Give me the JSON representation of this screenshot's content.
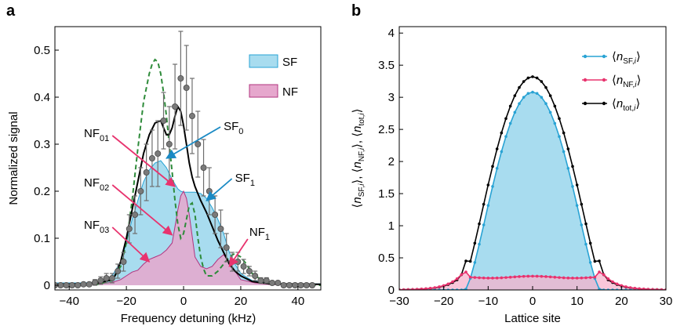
{
  "chart_data": [
    {
      "panel_label": "a",
      "type": "area",
      "xlabel": "Frequency detuning (kHz)",
      "ylabel": "Normalized signal",
      "xlim": [
        -45,
        48
      ],
      "ylim": [
        -0.01,
        0.55
      ],
      "xticks": [
        -40,
        -20,
        0,
        20,
        40
      ],
      "yticks": [
        0,
        0.1,
        0.2,
        0.3,
        0.4,
        0.5
      ],
      "xtick_labels": [
        "−40",
        "−20",
        "0",
        "20",
        "40"
      ],
      "ytick_labels": [
        "0",
        "0.1",
        "0.2",
        "0.3",
        "0.4",
        "0.5"
      ],
      "legend": {
        "placement": "top-right",
        "entries": [
          "SF",
          "NF"
        ]
      },
      "colors": {
        "sf_fill": "#a8dcef",
        "sf_line": "#29a3d4",
        "nf_fill": "#e6a7cd",
        "nf_line": "#b1347f",
        "fit": "#000000",
        "dashed": "#2e8b3a",
        "points": "#7a7a7a",
        "arrow_pink": "#e8336e",
        "arrow_blue": "#1a8ac4"
      },
      "series": [
        {
          "name": "SF",
          "kind": "filled-area",
          "x": [
            -45,
            -35,
            -30,
            -27,
            -25,
            -22,
            -20,
            -18,
            -16,
            -14,
            -12,
            -10,
            -8,
            -6,
            -4,
            -2,
            -1,
            0,
            2,
            4,
            6,
            8,
            10,
            12,
            14,
            16,
            18,
            20,
            24,
            30,
            40,
            48
          ],
          "y": [
            0.005,
            0.005,
            0.006,
            0.01,
            0.02,
            0.05,
            0.09,
            0.14,
            0.18,
            0.22,
            0.245,
            0.26,
            0.265,
            0.25,
            0.225,
            0.205,
            0.2,
            0.198,
            0.198,
            0.198,
            0.195,
            0.185,
            0.165,
            0.14,
            0.11,
            0.07,
            0.045,
            0.025,
            0.01,
            0.004,
            0.003,
            0.003
          ]
        },
        {
          "name": "NF",
          "kind": "filled-area",
          "x": [
            -45,
            -30,
            -25,
            -22,
            -20,
            -18,
            -16,
            -14,
            -12,
            -10,
            -8,
            -6,
            -4,
            -2,
            -1,
            0,
            1,
            2,
            4,
            6,
            8,
            10,
            12,
            14,
            16,
            18,
            20,
            25,
            30,
            48
          ],
          "y": [
            0.002,
            0.003,
            0.006,
            0.012,
            0.02,
            0.028,
            0.032,
            0.045,
            0.055,
            0.06,
            0.065,
            0.075,
            0.09,
            0.16,
            0.19,
            0.2,
            0.185,
            0.15,
            0.06,
            0.04,
            0.035,
            0.04,
            0.055,
            0.065,
            0.05,
            0.03,
            0.012,
            0.005,
            0.002,
            0.002
          ]
        },
        {
          "name": "",
          "kind": "line-black",
          "x": [
            -45,
            -35,
            -30,
            -26,
            -24,
            -22,
            -20,
            -18,
            -16,
            -14,
            -12,
            -10,
            -8,
            -7,
            -6,
            -5,
            -4,
            -3,
            -2,
            -1,
            0,
            1,
            2,
            3,
            4,
            6,
            8,
            10,
            12,
            14,
            16,
            18,
            20,
            24,
            30,
            48
          ],
          "y": [
            0.002,
            0.003,
            0.005,
            0.01,
            0.02,
            0.05,
            0.1,
            0.16,
            0.22,
            0.28,
            0.32,
            0.345,
            0.35,
            0.335,
            0.32,
            0.32,
            0.335,
            0.36,
            0.38,
            0.37,
            0.34,
            0.3,
            0.26,
            0.23,
            0.21,
            0.18,
            0.155,
            0.125,
            0.095,
            0.07,
            0.045,
            0.03,
            0.02,
            0.008,
            0.003,
            0.002
          ]
        },
        {
          "name": "",
          "kind": "line-dashed",
          "x": [
            -45,
            -30,
            -25,
            -22,
            -20,
            -18,
            -16,
            -14,
            -12,
            -11,
            -10,
            -9,
            -8,
            -7,
            -6,
            -5,
            -4,
            -3,
            -2,
            -1,
            0,
            1,
            2,
            3,
            4,
            5,
            6,
            7,
            8,
            10,
            12,
            14,
            16,
            18,
            20,
            22,
            24,
            28,
            35,
            48
          ],
          "y": [
            0,
            0.002,
            0.01,
            0.04,
            0.09,
            0.18,
            0.29,
            0.39,
            0.45,
            0.47,
            0.48,
            0.475,
            0.45,
            0.41,
            0.36,
            0.3,
            0.24,
            0.18,
            0.13,
            0.1,
            0.11,
            0.14,
            0.17,
            0.175,
            0.15,
            0.1,
            0.06,
            0.035,
            0.02,
            0.02,
            0.03,
            0.045,
            0.06,
            0.068,
            0.06,
            0.045,
            0.025,
            0.008,
            0.002,
            0
          ]
        },
        {
          "name": "",
          "kind": "points-with-error-bars",
          "x": [
            -45,
            -43,
            -41,
            -39,
            -37,
            -35,
            -33,
            -31,
            -29,
            -27,
            -25,
            -23,
            -21,
            -19,
            -17,
            -15,
            -13,
            -11,
            -9,
            -7,
            -5,
            -3,
            -1,
            1,
            3,
            5,
            7,
            9,
            11,
            13,
            15,
            17,
            19,
            21,
            23,
            25,
            27,
            29,
            31,
            33,
            35,
            37,
            39,
            41,
            43,
            45
          ],
          "y": [
            0,
            0,
            0,
            0,
            0,
            0.002,
            0.002,
            0.006,
            0.01,
            0.015,
            0.015,
            0.03,
            0.05,
            0.12,
            0.15,
            0.2,
            0.24,
            0.27,
            0.28,
            0.35,
            0.3,
            0.38,
            0.44,
            0.42,
            0.36,
            0.3,
            0.25,
            0.2,
            0.15,
            0.12,
            0.08,
            0.05,
            0.05,
            0.04,
            0.03,
            0.02,
            0.01,
            0.01,
            0.005,
            0.005,
            0,
            0,
            0,
            0,
            0,
            0
          ],
          "err": [
            0.004,
            0.004,
            0.004,
            0.004,
            0.004,
            0.004,
            0.004,
            0.006,
            0.008,
            0.01,
            0.01,
            0.015,
            0.02,
            0.03,
            0.04,
            0.05,
            0.06,
            0.06,
            0.07,
            0.06,
            0.08,
            0.09,
            0.1,
            0.09,
            0.08,
            0.07,
            0.06,
            0.05,
            0.04,
            0.04,
            0.03,
            0.02,
            0.02,
            0.015,
            0.01,
            0.01,
            0.006,
            0.006,
            0.004,
            0.004,
            0.004,
            0.004,
            0.004,
            0.004,
            0.004,
            0.004
          ]
        }
      ],
      "annotations": [
        {
          "label": "NF",
          "sub": "01",
          "x": -26,
          "y": 0.315,
          "ax": -3,
          "ay": 0.21,
          "arrow": "pink"
        },
        {
          "label": "NF",
          "sub": "02",
          "x": -26,
          "y": 0.21,
          "ax": -4,
          "ay": 0.107,
          "arrow": "pink"
        },
        {
          "label": "NF",
          "sub": "03",
          "x": -26,
          "y": 0.12,
          "ax": -12,
          "ay": 0.05,
          "arrow": "pink"
        },
        {
          "label": "NF",
          "sub": "1",
          "x": 23,
          "y": 0.105,
          "ax": 16,
          "ay": 0.04,
          "arrow": "pink"
        },
        {
          "label": "SF",
          "sub": "0",
          "x": 14,
          "y": 0.33,
          "ax": -6,
          "ay": 0.27,
          "arrow": "blue"
        },
        {
          "label": "SF",
          "sub": "1",
          "x": 18,
          "y": 0.22,
          "ax": 8,
          "ay": 0.18,
          "arrow": "blue"
        }
      ]
    },
    {
      "panel_label": "b",
      "type": "line",
      "xlabel": "Lattice site",
      "ylabel": "⟨n SF,i⟩, ⟨n NF,i⟩, ⟨n tot,i⟩",
      "xlim": [
        -30,
        30
      ],
      "ylim": [
        0,
        4.1
      ],
      "xticks": [
        -30,
        -20,
        -10,
        0,
        10,
        20,
        30
      ],
      "yticks": [
        0,
        0.5,
        1,
        1.5,
        2,
        2.5,
        3,
        3.5,
        4
      ],
      "xtick_labels": [
        "−30",
        "−20",
        "−10",
        "0",
        "10",
        "20",
        "30"
      ],
      "ytick_labels": [
        "0",
        "0.5",
        "1",
        "1.5",
        "2",
        "2.5",
        "3",
        "3.5",
        "4"
      ],
      "legend": {
        "placement": "top-right",
        "entries": [
          {
            "pre": "⟨",
            "n": "n",
            "sub": "SF,",
            "subi": "i",
            "post": "⟩",
            "color": "#29a3d4"
          },
          {
            "pre": "⟨",
            "n": "n",
            "sub": "NF,",
            "subi": "i",
            "post": "⟩",
            "color": "#e8336e"
          },
          {
            "pre": "⟨",
            "n": "n",
            "sub": "tot,",
            "subi": "i",
            "post": "⟩",
            "color": "#000000"
          }
        ]
      },
      "params": {
        "sf_peak": 3.08,
        "sf_radius": 15.2,
        "nf_level": 0.2,
        "nf_edge_peak": 0.28,
        "tot_peak": 3.32,
        "tot_radius": 16.3
      },
      "colors": {
        "sf": "#29a3d4",
        "nf": "#e8336e",
        "tot": "#000000",
        "sf_fill": "#a8dcef",
        "nf_fill": "#f6b3cc",
        "overlap_fill": "#c8a2c8"
      }
    }
  ]
}
